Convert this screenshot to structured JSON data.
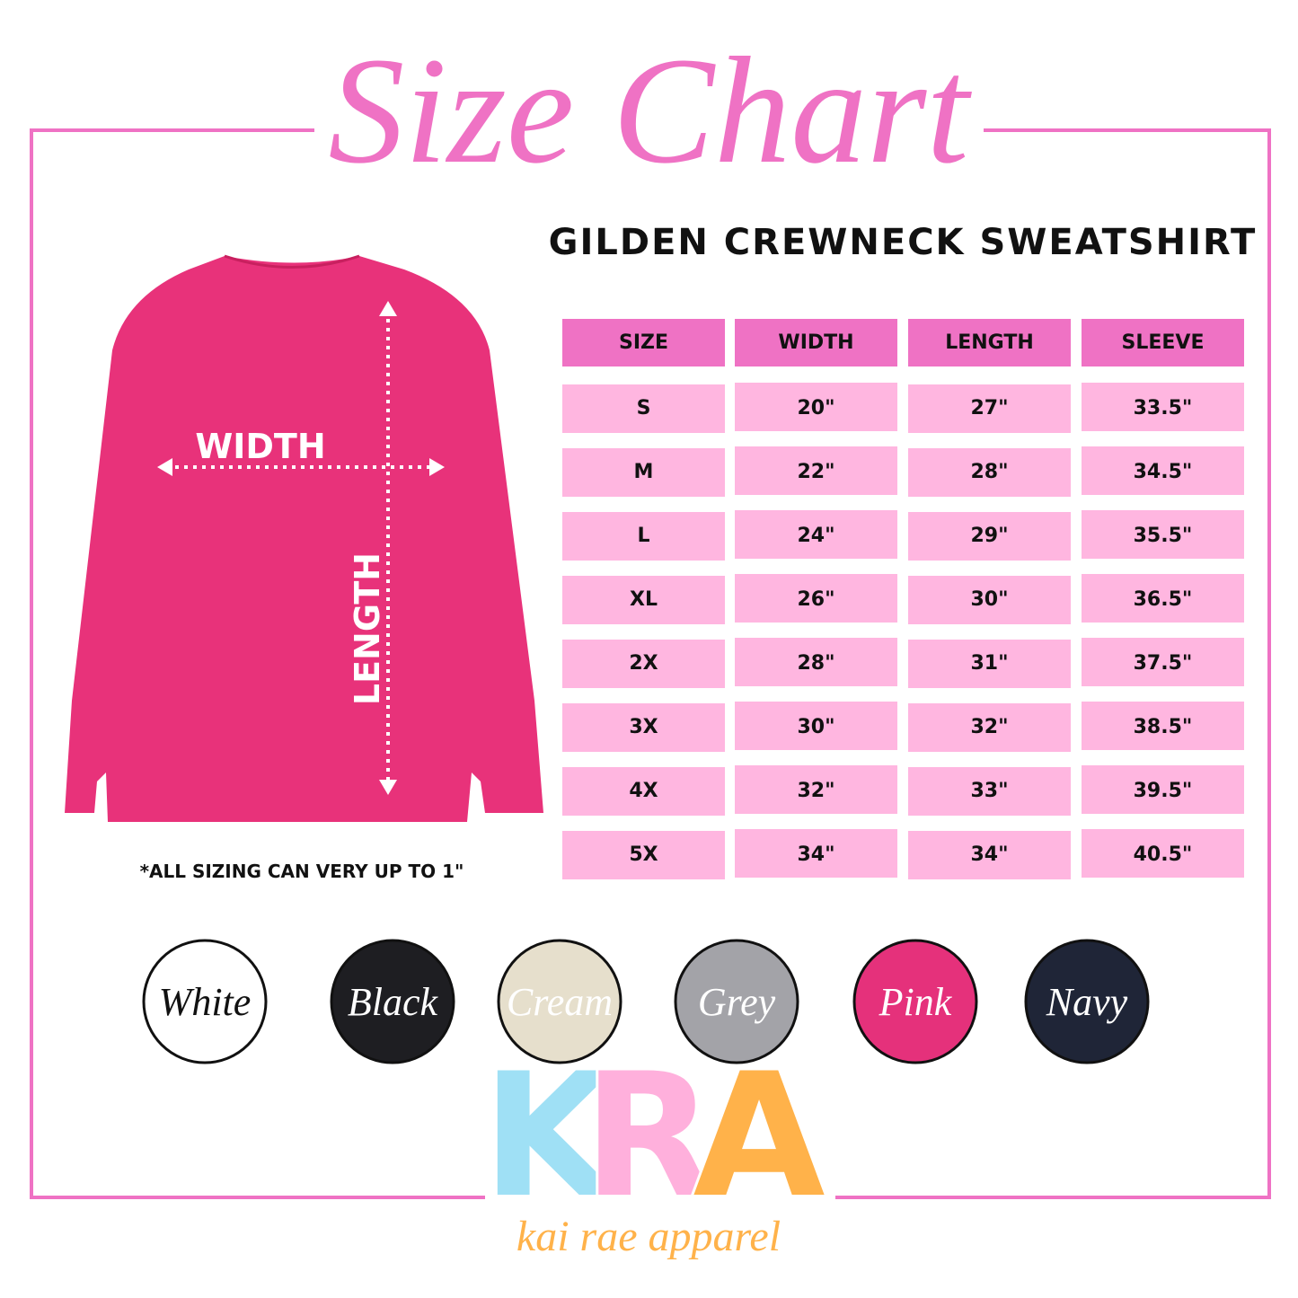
{
  "header": {
    "title": "Size Chart",
    "subtitle": "GILDEN CREWNECK SWEATSHIRT"
  },
  "illustration": {
    "width_label": "WIDTH",
    "length_label": "LENGTH"
  },
  "table": {
    "headers": [
      "SIZE",
      "WIDTH",
      "LENGTH",
      "SLEEVE"
    ],
    "rows": [
      [
        "S",
        "20\"",
        "27\"",
        "33.5\""
      ],
      [
        "M",
        "22\"",
        "28\"",
        "34.5\""
      ],
      [
        "L",
        "24\"",
        "29\"",
        "35.5\""
      ],
      [
        "XL",
        "26\"",
        "30\"",
        "36.5\""
      ],
      [
        "2X",
        "28\"",
        "31\"",
        "37.5\""
      ],
      [
        "3X",
        "30\"",
        "32\"",
        "38.5\""
      ],
      [
        "4X",
        "32\"",
        "33\"",
        "39.5\""
      ],
      [
        "5X",
        "34\"",
        "34\"",
        "40.5\""
      ]
    ]
  },
  "note": "*ALL SIZING CAN VERY UP TO 1\"",
  "colors": [
    {
      "name": "White",
      "color": "#ffffff"
    },
    {
      "name": "Black",
      "color": "#1e1e22"
    },
    {
      "name": "Cream",
      "color": "#e6dfcc"
    },
    {
      "name": "Grey",
      "color": "#a3a3a8"
    },
    {
      "name": "Pink",
      "color": "#e5317b"
    },
    {
      "name": "Navy",
      "color": "#1f2537"
    }
  ],
  "logo": {
    "letters": [
      "K",
      "R",
      "A"
    ],
    "tagline": "kai rae apparel"
  }
}
